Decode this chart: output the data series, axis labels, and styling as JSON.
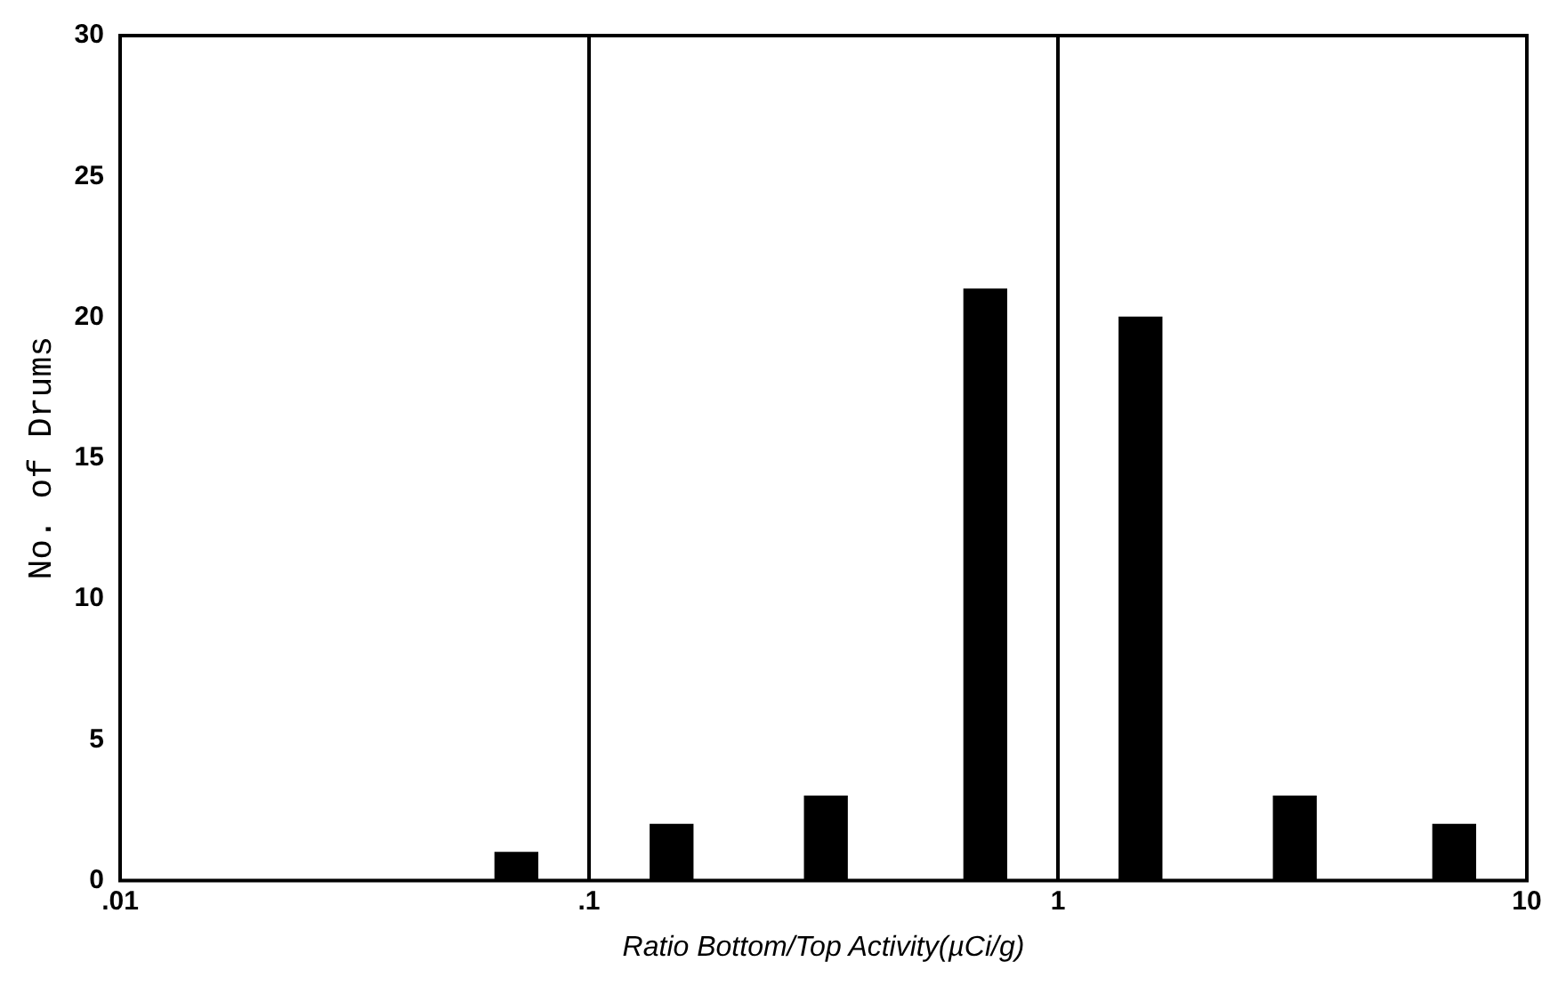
{
  "chart_data": {
    "type": "bar",
    "xlabel": "Ratio Bottom/Top Activity(µCi/g)",
    "ylabel": "No. of Drums",
    "x": [
      0.07,
      0.15,
      0.32,
      0.7,
      1.5,
      3.2,
      7
    ],
    "values": [
      1,
      2,
      3,
      21,
      20,
      3,
      2
    ],
    "color": "#000000",
    "log": "x",
    "xlim": [
      0.01,
      10
    ],
    "xticks": [
      {
        "value": 0.01,
        "label": ".01"
      },
      {
        "value": 0.1,
        "label": ".1"
      },
      {
        "value": 1,
        "label": "1"
      },
      {
        "value": 10,
        "label": "10"
      }
    ],
    "ylim": [
      0,
      30
    ],
    "yticks": [
      0,
      5,
      10,
      15,
      20,
      25,
      30
    ],
    "grid": "x",
    "legend": false
  }
}
